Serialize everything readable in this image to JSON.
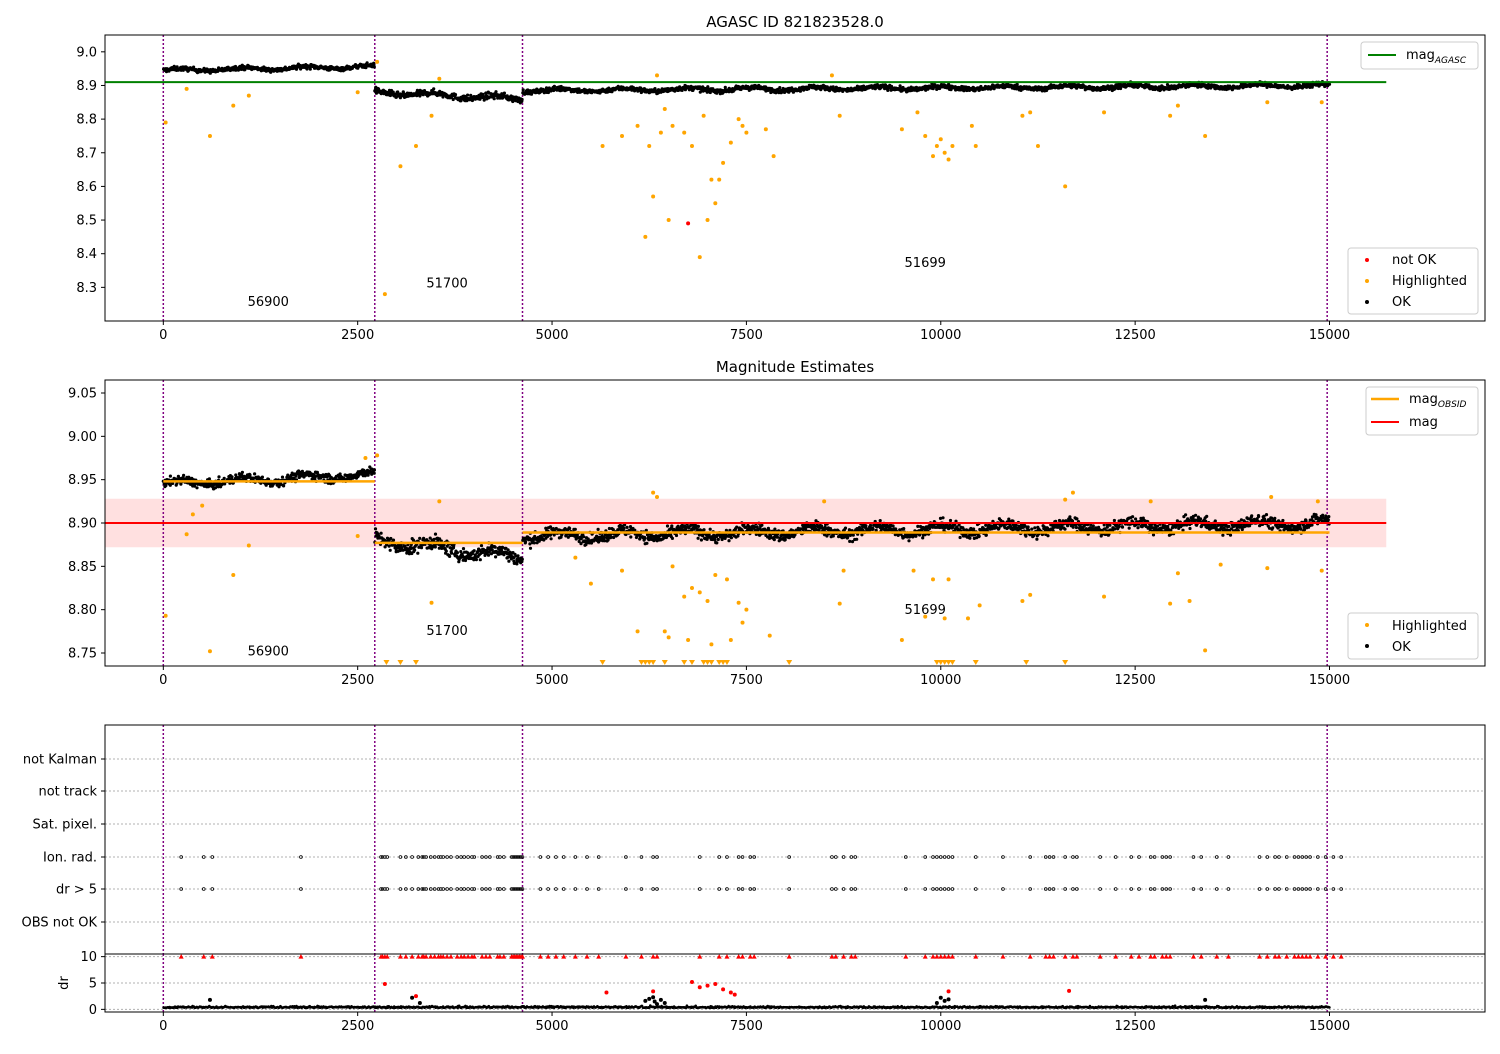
{
  "chart_data": [
    {
      "type": "scatter",
      "title": "AGASC ID 821823528.0",
      "xlim": [
        -750,
        17000
      ],
      "ylim": [
        8.2,
        9.05
      ],
      "xticks": [
        "0",
        "2500",
        "5000",
        "7500",
        "10000",
        "12500",
        "15000"
      ],
      "xtick_values": [
        0,
        2500,
        5000,
        7500,
        10000,
        12500,
        15000
      ],
      "yticks": [
        "9.0",
        "8.9",
        "8.8",
        "8.7",
        "8.6",
        "8.5",
        "8.4",
        "8.3"
      ],
      "ytick_values": [
        9.0,
        8.9,
        8.8,
        8.7,
        8.6,
        8.5,
        8.4,
        8.3
      ],
      "vlines": [
        0,
        2720,
        4620,
        14970
      ],
      "segment_labels": [
        {
          "text": "56900",
          "x": 1350,
          "y": 8.245
        },
        {
          "text": "51700",
          "x": 3650,
          "y": 8.3
        },
        {
          "text": "51699",
          "x": 9800,
          "y": 8.36
        }
      ],
      "mag_agasc": 8.91,
      "mag_agasc_range": [
        -750,
        15730
      ],
      "ok_bands": [
        {
          "x": [
            0,
            2720
          ],
          "y": [
            8.945,
            8.956
          ],
          "spread": 0.011
        },
        {
          "x": [
            2720,
            4620
          ],
          "y": [
            8.88,
            8.86
          ],
          "spread": 0.016
        },
        {
          "x": [
            4620,
            15000
          ],
          "y": [
            8.885,
            8.9
          ],
          "spread": 0.012
        }
      ],
      "highlighted": [
        [
          30,
          8.79
        ],
        [
          300,
          8.89
        ],
        [
          600,
          8.75
        ],
        [
          900,
          8.84
        ],
        [
          1100,
          8.87
        ],
        [
          2500,
          8.88
        ],
        [
          2750,
          8.97
        ],
        [
          2850,
          8.28
        ],
        [
          3050,
          8.66
        ],
        [
          3250,
          8.72
        ],
        [
          3450,
          8.81
        ],
        [
          3550,
          8.92
        ],
        [
          5650,
          8.72
        ],
        [
          5900,
          8.75
        ],
        [
          6100,
          8.78
        ],
        [
          6200,
          8.45
        ],
        [
          6250,
          8.72
        ],
        [
          6300,
          8.57
        ],
        [
          6350,
          8.93
        ],
        [
          6400,
          8.76
        ],
        [
          6450,
          8.83
        ],
        [
          6500,
          8.5
        ],
        [
          6550,
          8.78
        ],
        [
          6700,
          8.76
        ],
        [
          6800,
          8.72
        ],
        [
          6900,
          8.39
        ],
        [
          6950,
          8.81
        ],
        [
          7000,
          8.5
        ],
        [
          7050,
          8.62
        ],
        [
          7100,
          8.55
        ],
        [
          7150,
          8.62
        ],
        [
          7200,
          8.67
        ],
        [
          7300,
          8.73
        ],
        [
          7400,
          8.8
        ],
        [
          7450,
          8.78
        ],
        [
          7500,
          8.76
        ],
        [
          7750,
          8.77
        ],
        [
          7850,
          8.69
        ],
        [
          8600,
          8.93
        ],
        [
          8700,
          8.81
        ],
        [
          9500,
          8.77
        ],
        [
          9700,
          8.82
        ],
        [
          9800,
          8.75
        ],
        [
          9900,
          8.69
        ],
        [
          9950,
          8.72
        ],
        [
          10000,
          8.74
        ],
        [
          10050,
          8.7
        ],
        [
          10100,
          8.68
        ],
        [
          10150,
          8.72
        ],
        [
          10400,
          8.78
        ],
        [
          10450,
          8.72
        ],
        [
          11050,
          8.81
        ],
        [
          11150,
          8.82
        ],
        [
          11250,
          8.72
        ],
        [
          11600,
          8.6
        ],
        [
          12100,
          8.82
        ],
        [
          12950,
          8.81
        ],
        [
          13050,
          8.84
        ],
        [
          13400,
          8.75
        ],
        [
          14200,
          8.85
        ],
        [
          14900,
          8.85
        ]
      ],
      "not_ok": [
        [
          6750,
          8.49
        ]
      ],
      "legends": [
        [
          "mag_AGASC"
        ],
        [
          "not OK",
          "Highlighted",
          "OK"
        ]
      ]
    },
    {
      "type": "scatter",
      "title": "Magnitude Estimates",
      "xlim": [
        -750,
        17000
      ],
      "ylim": [
        8.735,
        9.065
      ],
      "xticks": [
        "0",
        "2500",
        "5000",
        "7500",
        "10000",
        "12500",
        "15000"
      ],
      "xtick_values": [
        0,
        2500,
        5000,
        7500,
        10000,
        12500,
        15000
      ],
      "yticks": [
        "9.05",
        "9.00",
        "8.95",
        "8.90",
        "8.85",
        "8.80",
        "8.75"
      ],
      "ytick_values": [
        9.05,
        9.0,
        8.95,
        8.9,
        8.85,
        8.8,
        8.75
      ],
      "vlines": [
        0,
        2720,
        4620,
        14970
      ],
      "segment_labels": [
        {
          "text": "56900",
          "x": 1350,
          "y": 8.747
        },
        {
          "text": "51700",
          "x": 3650,
          "y": 8.771
        },
        {
          "text": "51699",
          "x": 9800,
          "y": 8.795
        }
      ],
      "mag": 8.9,
      "mag_band": [
        8.872,
        8.928
      ],
      "mag_range": [
        -750,
        15730
      ],
      "mag_obsid": [
        {
          "x": [
            0,
            2720
          ],
          "y": 8.948
        },
        {
          "x": [
            2720,
            4620
          ],
          "y": 8.877
        },
        {
          "x": [
            4620,
            15000
          ],
          "y": 8.889
        }
      ],
      "ok_bands": [
        {
          "x": [
            0,
            2720
          ],
          "y": [
            8.945,
            8.956
          ],
          "spread": 0.009
        },
        {
          "x": [
            2720,
            4620
          ],
          "y": [
            8.88,
            8.86
          ],
          "spread": 0.014
        },
        {
          "x": [
            4620,
            15000
          ],
          "y": [
            8.885,
            8.9
          ],
          "spread": 0.012
        }
      ],
      "highlighted": [
        [
          30,
          8.793
        ],
        [
          300,
          8.887
        ],
        [
          380,
          8.91
        ],
        [
          500,
          8.92
        ],
        [
          600,
          8.752
        ],
        [
          900,
          8.84
        ],
        [
          1100,
          8.874
        ],
        [
          2500,
          8.885
        ],
        [
          2600,
          8.975
        ],
        [
          2750,
          8.978
        ],
        [
          3450,
          8.808
        ],
        [
          3550,
          8.925
        ],
        [
          5300,
          8.86
        ],
        [
          5500,
          8.83
        ],
        [
          5900,
          8.845
        ],
        [
          6100,
          8.775
        ],
        [
          6300,
          8.935
        ],
        [
          6350,
          8.93
        ],
        [
          6450,
          8.775
        ],
        [
          6500,
          8.768
        ],
        [
          6550,
          8.85
        ],
        [
          6700,
          8.815
        ],
        [
          6750,
          8.765
        ],
        [
          6800,
          8.825
        ],
        [
          6900,
          8.82
        ],
        [
          7000,
          8.81
        ],
        [
          7050,
          8.76
        ],
        [
          7100,
          8.84
        ],
        [
          7250,
          8.835
        ],
        [
          7300,
          8.765
        ],
        [
          7400,
          8.808
        ],
        [
          7450,
          8.785
        ],
        [
          7500,
          8.8
        ],
        [
          7800,
          8.77
        ],
        [
          8500,
          8.925
        ],
        [
          8700,
          8.807
        ],
        [
          8750,
          8.845
        ],
        [
          9500,
          8.765
        ],
        [
          9650,
          8.845
        ],
        [
          9800,
          8.792
        ],
        [
          9900,
          8.835
        ],
        [
          10050,
          8.79
        ],
        [
          10100,
          8.835
        ],
        [
          10350,
          8.79
        ],
        [
          10500,
          8.805
        ],
        [
          11050,
          8.81
        ],
        [
          11150,
          8.817
        ],
        [
          11600,
          8.927
        ],
        [
          11700,
          8.935
        ],
        [
          12100,
          8.815
        ],
        [
          12700,
          8.925
        ],
        [
          12950,
          8.807
        ],
        [
          13050,
          8.842
        ],
        [
          13200,
          8.81
        ],
        [
          13400,
          8.753
        ],
        [
          13600,
          8.852
        ],
        [
          14200,
          8.848
        ],
        [
          14250,
          8.93
        ],
        [
          14850,
          8.925
        ],
        [
          14900,
          8.845
        ]
      ],
      "below_range": [
        2870,
        3050,
        3250,
        5650,
        6150,
        6200,
        6250,
        6300,
        6450,
        6700,
        6800,
        6950,
        7000,
        7050,
        7150,
        7200,
        7250,
        8050,
        9950,
        10000,
        10050,
        10100,
        10150,
        10450,
        11100,
        11600
      ],
      "legends": [
        [
          "mag_OBSID",
          "mag"
        ],
        [
          "Highlighted",
          "OK"
        ]
      ]
    },
    {
      "type": "scatter",
      "title": "",
      "xlim": [
        -750,
        17000
      ],
      "categories": [
        "not Kalman",
        "not track",
        "Sat. pixel.",
        "Ion. rad.",
        "dr > 5",
        "OBS not OK"
      ],
      "vlines": [
        0,
        2720,
        4620,
        14970
      ],
      "flag_x": [
        230,
        520,
        630,
        1770,
        2800,
        2820,
        2850,
        2880,
        3050,
        3120,
        3200,
        3280,
        3330,
        3350,
        3380,
        3440,
        3490,
        3540,
        3570,
        3600,
        3650,
        3700,
        3780,
        3830,
        3870,
        3920,
        3970,
        4000,
        4100,
        4150,
        4200,
        4300,
        4330,
        4380,
        4480,
        4500,
        4520,
        4540,
        4560,
        4580,
        4600,
        4620,
        4850,
        4950,
        5050,
        5150,
        5300,
        5450,
        5600,
        5950,
        6150,
        6300,
        6350,
        6900,
        7150,
        7250,
        7400,
        7450,
        7550,
        7600,
        8050,
        8600,
        8650,
        8750,
        8850,
        8900,
        9550,
        9800,
        9900,
        9950,
        10000,
        10050,
        10100,
        10150,
        10450,
        10800,
        11150,
        11350,
        11400,
        11450,
        11600,
        11700,
        11750,
        12050,
        12250,
        12450,
        12550,
        12700,
        12750,
        12850,
        12900,
        12950,
        13250,
        13350,
        13550,
        13700,
        14100,
        14200,
        14300,
        14350,
        14450,
        14550,
        14600,
        14650,
        14700,
        14750,
        14850,
        14950,
        15050,
        15150
      ],
      "flag_rows": [
        "Ion. rad.",
        "dr > 5"
      ]
    },
    {
      "type": "scatter",
      "title": "",
      "ylabel": "dr",
      "xlim": [
        -750,
        17000
      ],
      "ylim": [
        -0.5,
        10.5
      ],
      "xticks": [
        "0",
        "2500",
        "5000",
        "7500",
        "10000",
        "12500",
        "15000"
      ],
      "xtick_values": [
        0,
        2500,
        5000,
        7500,
        10000,
        12500,
        15000
      ],
      "yticks": [
        "10",
        "5",
        "0"
      ],
      "ytick_values": [
        10,
        5,
        0
      ],
      "vlines": [
        0,
        2720,
        4620,
        14970
      ],
      "baseline": 0.3,
      "outliers_black": [
        [
          600,
          1.8
        ],
        [
          3200,
          2.2
        ],
        [
          3300,
          1.2
        ],
        [
          6200,
          1.6
        ],
        [
          6250,
          2.0
        ],
        [
          6300,
          2.3
        ],
        [
          6320,
          1.5
        ],
        [
          6350,
          1.0
        ],
        [
          6400,
          1.8
        ],
        [
          6450,
          1.2
        ],
        [
          9950,
          1.2
        ],
        [
          10000,
          2.2
        ],
        [
          10050,
          1.6
        ],
        [
          10100,
          1.9
        ],
        [
          13400,
          1.8
        ]
      ],
      "outliers_red": [
        [
          2850,
          4.8
        ],
        [
          3250,
          2.5
        ],
        [
          5700,
          3.2
        ],
        [
          6300,
          3.4
        ],
        [
          6900,
          4.2
        ],
        [
          6800,
          5.2
        ],
        [
          7000,
          4.5
        ],
        [
          7100,
          4.8
        ],
        [
          7200,
          3.8
        ],
        [
          7300,
          3.2
        ],
        [
          7350,
          2.8
        ],
        [
          10100,
          3.4
        ],
        [
          11650,
          3.5
        ]
      ],
      "clipped_x_from": "flag_x"
    }
  ]
}
